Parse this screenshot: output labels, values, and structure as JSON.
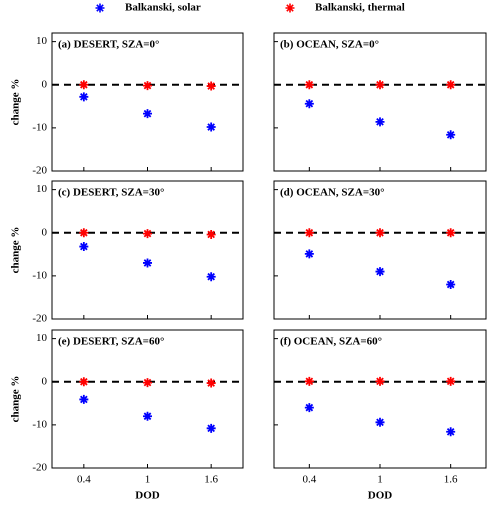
{
  "chart_data": [
    {
      "type": "scatter",
      "title": "(a) DESERT, SZA=0°",
      "ylabel": "change %",
      "categories": [
        "0.4",
        "1",
        "1.6"
      ],
      "series": [
        {
          "name": "Balkanski, solar",
          "color": "#0000ff",
          "values": [
            -2.8,
            -6.7,
            -9.8
          ]
        },
        {
          "name": "Balkanski, thermal",
          "color": "#ff0000",
          "values": [
            0,
            -0.2,
            -0.3
          ]
        }
      ],
      "ylim": [
        -20,
        12
      ],
      "yticks": [
        -20,
        -10,
        0,
        10
      ],
      "reference_line": 0
    },
    {
      "type": "scatter",
      "title": "(b) OCEAN, SZA=0°",
      "categories": [
        "0.4",
        "1",
        "1.6"
      ],
      "series": [
        {
          "name": "Balkanski, solar",
          "color": "#0000ff",
          "values": [
            -4.4,
            -8.6,
            -11.6
          ]
        },
        {
          "name": "Balkanski, thermal",
          "color": "#ff0000",
          "values": [
            0,
            0,
            0
          ]
        }
      ],
      "ylim": [
        -20,
        12
      ],
      "yticks": [
        -20,
        -10,
        0,
        10
      ],
      "reference_line": 0
    },
    {
      "type": "scatter",
      "title": "(c) DESERT, SZA=30°",
      "ylabel": "change %",
      "categories": [
        "0.4",
        "1",
        "1.6"
      ],
      "series": [
        {
          "name": "Balkanski, solar",
          "color": "#0000ff",
          "values": [
            -3.2,
            -7.0,
            -10.2
          ]
        },
        {
          "name": "Balkanski, thermal",
          "color": "#ff0000",
          "values": [
            0,
            -0.2,
            -0.4
          ]
        }
      ],
      "ylim": [
        -20,
        12
      ],
      "yticks": [
        -20,
        -10,
        0,
        10
      ],
      "reference_line": 0
    },
    {
      "type": "scatter",
      "title": "(d) OCEAN, SZA=30°",
      "categories": [
        "0.4",
        "1",
        "1.6"
      ],
      "series": [
        {
          "name": "Balkanski, solar",
          "color": "#0000ff",
          "values": [
            -4.9,
            -9.0,
            -12.0
          ]
        },
        {
          "name": "Balkanski, thermal",
          "color": "#ff0000",
          "values": [
            0,
            0,
            0
          ]
        }
      ],
      "ylim": [
        -20,
        12
      ],
      "yticks": [
        -20,
        -10,
        0,
        10
      ],
      "reference_line": 0
    },
    {
      "type": "scatter",
      "title": "(e) DESERT, SZA=60°",
      "ylabel": "change %",
      "xlabel": "DOD",
      "categories": [
        "0.4",
        "1",
        "1.6"
      ],
      "series": [
        {
          "name": "Balkanski, solar",
          "color": "#0000ff",
          "values": [
            -4.1,
            -8.0,
            -10.8
          ]
        },
        {
          "name": "Balkanski, thermal",
          "color": "#ff0000",
          "values": [
            0,
            -0.2,
            -0.3
          ]
        }
      ],
      "ylim": [
        -20,
        12
      ],
      "yticks": [
        -20,
        -10,
        0,
        10
      ],
      "reference_line": 0
    },
    {
      "type": "scatter",
      "title": "(f) OCEAN, SZA=60°",
      "xlabel": "DOD",
      "categories": [
        "0.4",
        "1",
        "1.6"
      ],
      "series": [
        {
          "name": "Balkanski, solar",
          "color": "#0000ff",
          "values": [
            -6.0,
            -9.4,
            -11.6
          ]
        },
        {
          "name": "Balkanski, thermal",
          "color": "#ff0000",
          "values": [
            0.1,
            0.1,
            0.1
          ]
        }
      ],
      "ylim": [
        -20,
        12
      ],
      "yticks": [
        -20,
        -10,
        0,
        10
      ],
      "reference_line": 0
    }
  ]
}
